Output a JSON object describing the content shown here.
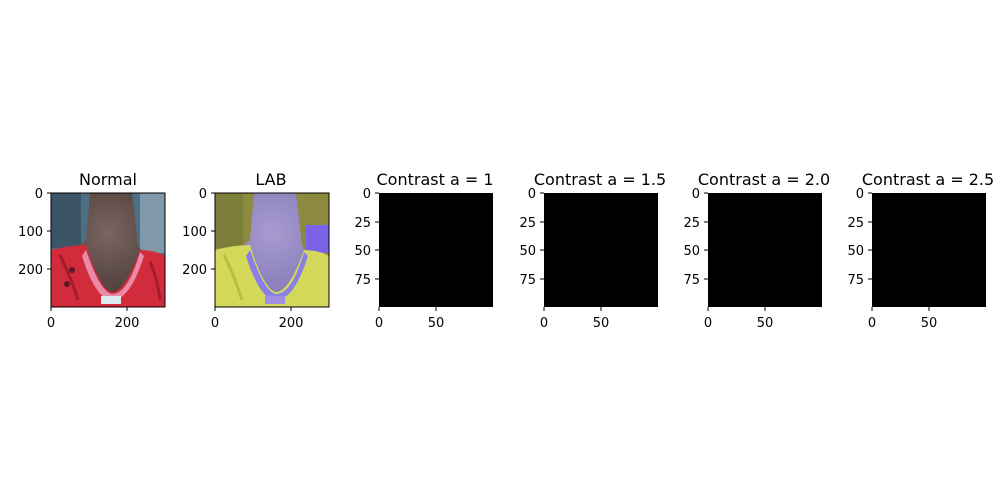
{
  "figure": {
    "panels": [
      {
        "title": "Normal",
        "image": "photo-neck-back-normal",
        "xticks": [
          "0",
          "200"
        ],
        "yticks": [
          "0",
          "100",
          "200"
        ]
      },
      {
        "title": "LAB",
        "image": "photo-neck-back-lab",
        "xticks": [
          "0",
          "200"
        ],
        "yticks": [
          "0",
          "100",
          "200"
        ]
      },
      {
        "title": "Contrast a = 1",
        "image": "black-image",
        "xticks": [
          "0",
          "50"
        ],
        "yticks": [
          "0",
          "25",
          "50",
          "75"
        ]
      },
      {
        "title": "Contrast a = 1.5",
        "image": "black-image",
        "xticks": [
          "0",
          "50"
        ],
        "yticks": [
          "0",
          "25",
          "50",
          "75"
        ]
      },
      {
        "title": "Contrast a = 2.0",
        "image": "black-image",
        "xticks": [
          "0",
          "50"
        ],
        "yticks": [
          "0",
          "25",
          "50",
          "75"
        ]
      },
      {
        "title": "Contrast a = 2.5",
        "image": "black-image",
        "xticks": [
          "0",
          "50"
        ],
        "yticks": [
          "0",
          "25",
          "50",
          "75"
        ]
      }
    ]
  }
}
